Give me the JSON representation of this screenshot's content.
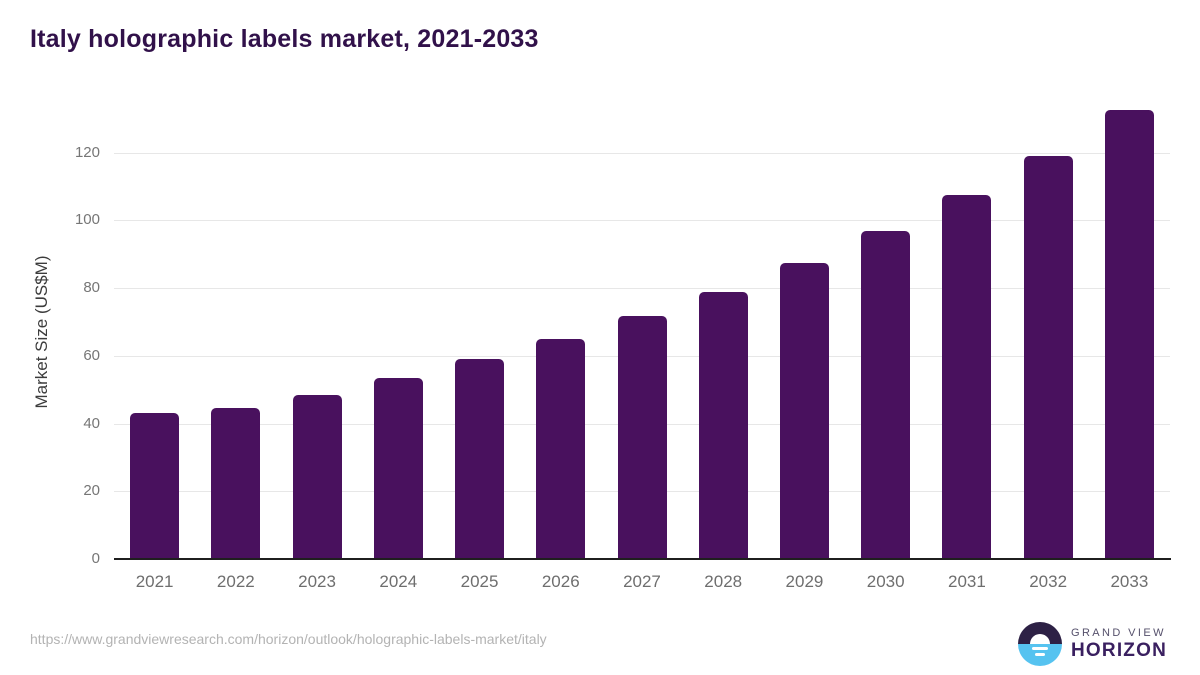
{
  "title": "Italy holographic labels market, 2021-2033",
  "source_url": "https://www.grandviewresearch.com/horizon/outlook/holographic-labels-market/italy",
  "logo": {
    "line1": "GRAND VIEW",
    "line2": "HORIZON"
  },
  "colors": {
    "bar": "#49115e",
    "title": "#31114a",
    "gridline": "#e7e7e7",
    "axis_line": "#1f1f1f",
    "tick_label": "#767676",
    "background": "#ffffff"
  },
  "chart_data": {
    "type": "bar",
    "title": "Italy holographic labels market, 2021-2033",
    "xlabel": "",
    "ylabel": "Market Size (US$M)",
    "categories": [
      "2021",
      "2022",
      "2023",
      "2024",
      "2025",
      "2026",
      "2027",
      "2028",
      "2029",
      "2030",
      "2031",
      "2032",
      "2033"
    ],
    "values": [
      43.0,
      44.6,
      48.4,
      53.5,
      58.9,
      64.8,
      71.6,
      78.9,
      87.4,
      96.7,
      107.5,
      118.9,
      132.4
    ],
    "ylim": [
      0,
      140
    ],
    "yticks": [
      0,
      20,
      40,
      60,
      80,
      100,
      120
    ],
    "grid": true,
    "legend": "none",
    "bar_color": "#49115e"
  }
}
